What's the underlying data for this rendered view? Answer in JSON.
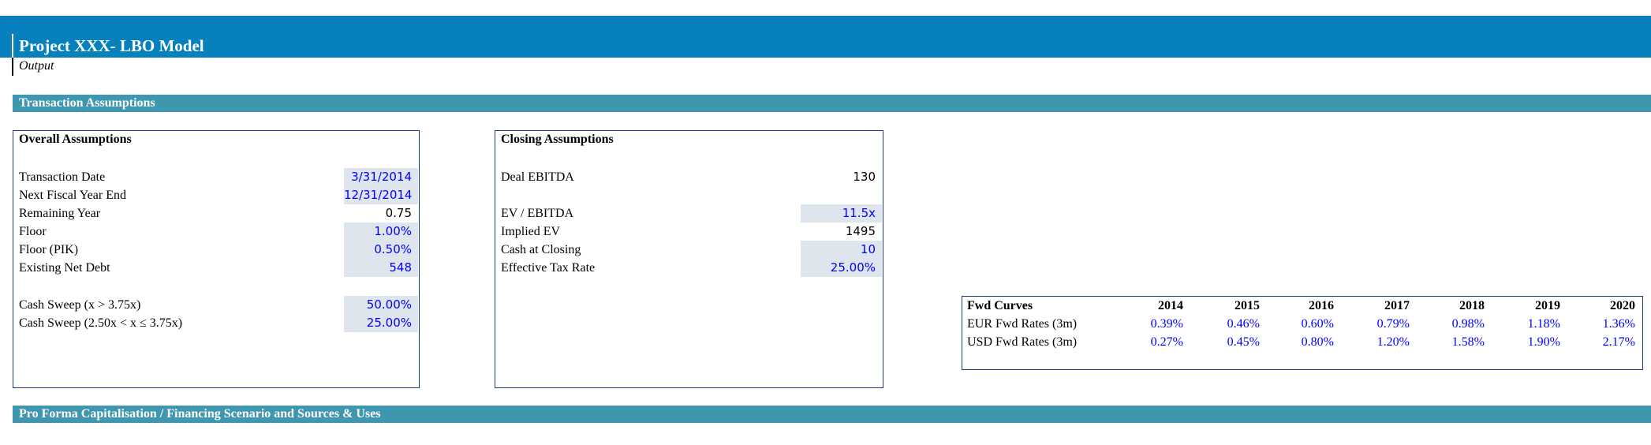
{
  "header": {
    "title": "Project XXX- LBO Model",
    "subtitle": "Output"
  },
  "sections": {
    "transaction": "Transaction Assumptions",
    "pro_forma": "Pro Forma Capitalisation / Financing Scenario and Sources & Uses"
  },
  "overall": {
    "title": "Overall Assumptions",
    "rows": [
      {
        "label": "Transaction Date",
        "value": "3/31/2014"
      },
      {
        "label": "Next Fiscal Year End",
        "value": "12/31/2014"
      },
      {
        "label": "Remaining Year",
        "value": "0.75"
      },
      {
        "label": "Floor",
        "value": "1.00%"
      },
      {
        "label": "Floor (PIK)",
        "value": "0.50%"
      },
      {
        "label": "Existing Net Debt",
        "value": "548"
      },
      {
        "label": "Cash Sweep (x > 3.75x)",
        "value": "50.00%"
      },
      {
        "label": "Cash Sweep (2.50x < x ≤ 3.75x)",
        "value": "25.00%"
      }
    ]
  },
  "closing": {
    "title": "Closing Assumptions",
    "rows": [
      {
        "label": "Deal EBITDA",
        "value": "130"
      },
      {
        "label": "EV / EBITDA",
        "value": "11.5x"
      },
      {
        "label": "Implied EV",
        "value": "1495"
      },
      {
        "label": "Cash at Closing",
        "value": "10"
      },
      {
        "label": "Effective Tax Rate",
        "value": "25.00%"
      }
    ]
  },
  "fwd": {
    "title": "Fwd Curves",
    "years": [
      "2014",
      "2015",
      "2016",
      "2017",
      "2018",
      "2019",
      "2020"
    ],
    "rows": [
      {
        "label": "EUR Fwd Rates (3m)",
        "values": [
          "0.39%",
          "0.46%",
          "0.60%",
          "0.79%",
          "0.98%",
          "1.18%",
          "1.36%"
        ]
      },
      {
        "label": "USD Fwd Rates (3m)",
        "values": [
          "0.27%",
          "0.45%",
          "0.80%",
          "1.20%",
          "1.58%",
          "1.90%",
          "2.17%"
        ]
      }
    ]
  }
}
